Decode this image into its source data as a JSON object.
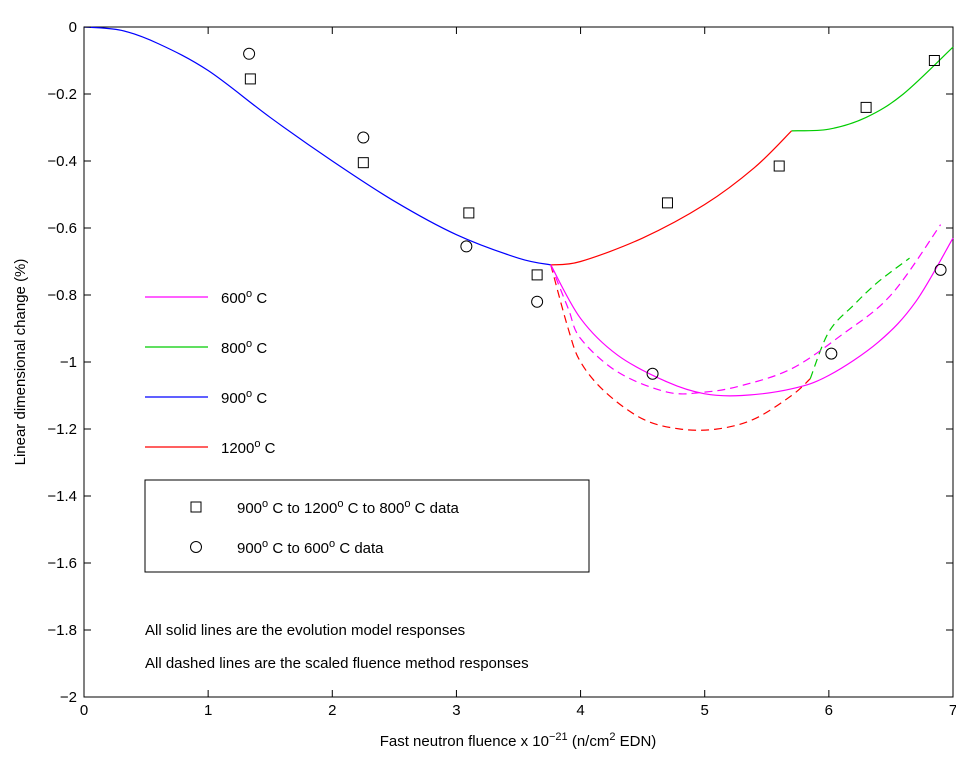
{
  "chart_data": {
    "type": "line",
    "xlabel": {
      "pre": "Fast neutron fluence x 10",
      "sup": "−21",
      "mid": " (n/cm",
      "sup2": "2",
      "post": " EDN)"
    },
    "ylabel": "Linear dimensional change (%)",
    "xlim": [
      0,
      7
    ],
    "ylim": [
      -2,
      0
    ],
    "xticks": [
      "0",
      "1",
      "2",
      "3",
      "4",
      "5",
      "6",
      "7"
    ],
    "yticks": [
      "0",
      "−0.2",
      "−0.4",
      "−0.6",
      "−0.8",
      "−1",
      "−1.2",
      "−1.4",
      "−1.6",
      "−1.8",
      "−2"
    ],
    "grid": false,
    "colors": {
      "600": "#ff00ff",
      "800": "#00cc00",
      "900": "#0000ff",
      "1200": "#ff0000"
    },
    "legend_lines": [
      {
        "temp": "600",
        "rest": " C",
        "color_key": "600"
      },
      {
        "temp": "800",
        "rest": " C",
        "color_key": "800"
      },
      {
        "temp": "900",
        "rest": " C",
        "color_key": "900"
      },
      {
        "temp": "1200",
        "rest": " C",
        "color_key": "1200"
      }
    ],
    "legend_markers": [
      {
        "marker": "square",
        "parts": [
          "900",
          " C to 1200",
          " C to 800",
          " C data"
        ]
      },
      {
        "marker": "circle",
        "parts": [
          "900",
          " C to 600",
          " C data"
        ]
      }
    ],
    "sup_o": "o",
    "series_lines": [
      {
        "color_key": "900",
        "style": "solid",
        "points": [
          [
            0,
            0
          ],
          [
            0.3,
            -0.01
          ],
          [
            0.6,
            -0.05
          ],
          [
            1,
            -0.13
          ],
          [
            1.5,
            -0.27
          ],
          [
            2,
            -0.4
          ],
          [
            2.5,
            -0.52
          ],
          [
            3,
            -0.62
          ],
          [
            3.5,
            -0.69
          ],
          [
            3.76,
            -0.71
          ]
        ]
      },
      {
        "color_key": "1200",
        "style": "solid",
        "points": [
          [
            3.76,
            -0.71
          ],
          [
            4,
            -0.7
          ],
          [
            4.5,
            -0.63
          ],
          [
            5,
            -0.53
          ],
          [
            5.4,
            -0.42
          ],
          [
            5.7,
            -0.31
          ]
        ]
      },
      {
        "color_key": "800",
        "style": "solid",
        "points": [
          [
            5.7,
            -0.31
          ],
          [
            6,
            -0.305
          ],
          [
            6.3,
            -0.27
          ],
          [
            6.6,
            -0.2
          ],
          [
            7,
            -0.06
          ]
        ]
      },
      {
        "color_key": "600",
        "style": "solid",
        "points": [
          [
            3.76,
            -0.71
          ],
          [
            4,
            -0.87
          ],
          [
            4.3,
            -0.98
          ],
          [
            4.7,
            -1.06
          ],
          [
            5,
            -1.095
          ],
          [
            5.3,
            -1.1
          ],
          [
            5.7,
            -1.08
          ],
          [
            6,
            -1.04
          ],
          [
            6.4,
            -0.94
          ],
          [
            6.7,
            -0.82
          ],
          [
            7,
            -0.63
          ]
        ]
      },
      {
        "color_key": "1200",
        "style": "dashed",
        "points": [
          [
            3.76,
            -0.71
          ],
          [
            3.9,
            -0.9
          ],
          [
            4,
            -1
          ],
          [
            4.2,
            -1.09
          ],
          [
            4.5,
            -1.17
          ],
          [
            4.8,
            -1.2
          ],
          [
            5.1,
            -1.2
          ],
          [
            5.4,
            -1.17
          ],
          [
            5.7,
            -1.1
          ],
          [
            5.85,
            -1.05
          ]
        ]
      },
      {
        "color_key": "800",
        "style": "dashed",
        "points": [
          [
            5.85,
            -1.05
          ],
          [
            6,
            -0.91
          ],
          [
            6.2,
            -0.83
          ],
          [
            6.4,
            -0.76
          ],
          [
            6.65,
            -0.69
          ]
        ]
      },
      {
        "color_key": "600",
        "style": "dashed",
        "points": [
          [
            3.76,
            -0.71
          ],
          [
            3.9,
            -0.84
          ],
          [
            4,
            -0.93
          ],
          [
            4.3,
            -1.03
          ],
          [
            4.7,
            -1.09
          ],
          [
            5,
            -1.09
          ],
          [
            5.3,
            -1.07
          ],
          [
            5.7,
            -1.02
          ],
          [
            6.1,
            -0.92
          ],
          [
            6.5,
            -0.8
          ],
          [
            6.9,
            -0.59
          ]
        ]
      }
    ],
    "square_data": [
      [
        1.34,
        -0.155
      ],
      [
        2.25,
        -0.405
      ],
      [
        3.1,
        -0.555
      ],
      [
        3.65,
        -0.74
      ],
      [
        4.7,
        -0.525
      ],
      [
        5.6,
        -0.415
      ],
      [
        6.3,
        -0.24
      ],
      [
        6.85,
        -0.1
      ]
    ],
    "circle_data": [
      [
        1.33,
        -0.08
      ],
      [
        2.25,
        -0.33
      ],
      [
        3.08,
        -0.655
      ],
      [
        3.65,
        -0.82
      ],
      [
        4.58,
        -1.035
      ],
      [
        6.02,
        -0.975
      ],
      [
        6.9,
        -0.725
      ]
    ],
    "annotations": [
      "All solid lines are the evolution model responses",
      "All dashed lines are the scaled fluence method responses"
    ]
  }
}
